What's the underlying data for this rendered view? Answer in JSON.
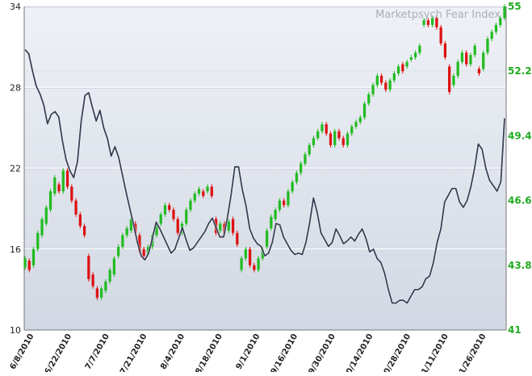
{
  "chart_data": {
    "type": "line",
    "title": "Marketpsych Fear Index",
    "xlabel": "",
    "ylabel": "",
    "x_ticks": [
      "6/8/2010",
      "6/22/2010",
      "7/7/2010",
      "7/21/2010",
      "8/4/2010",
      "8/18/2010",
      "9/1/2010",
      "9/16/2010",
      "9/30/2010",
      "10/14/2010",
      "10/28/2010",
      "11/11/2010",
      "11/26/2010"
    ],
    "y_left": {
      "range": [
        10,
        34
      ],
      "ticks": [
        "10",
        "16",
        "22",
        "28",
        "34"
      ]
    },
    "y_right": {
      "range": [
        41,
        55
      ],
      "ticks": [
        "41",
        "43.8",
        "46.6",
        "49.4",
        "52.2",
        "55"
      ]
    },
    "grid": true,
    "colors": {
      "background_top": "#eef1f6",
      "background_bottom": "#d2d8e3",
      "line": "#3a3f55",
      "up": "#22bb22",
      "down": "#dd1111",
      "right_axis_text": "#22aa22",
      "title_text": "#aab0b8"
    },
    "series": [
      {
        "axis": "left",
        "style": "line",
        "values": [
          30.8,
          30.5,
          29.2,
          28.1,
          27.5,
          26.7,
          25.3,
          26.0,
          26.2,
          25.8,
          24.0,
          22.6,
          21.8,
          21.3,
          22.5,
          25.5,
          27.4,
          27.6,
          26.5,
          25.5,
          26.3,
          25.0,
          24.2,
          22.9,
          23.6,
          22.8,
          21.5,
          20.2,
          19.0,
          17.8,
          16.5,
          15.5,
          15.2,
          15.7,
          16.8,
          18.0,
          17.5,
          16.9,
          16.3,
          15.7,
          16.0,
          16.8,
          17.6,
          16.7,
          15.9,
          16.1,
          16.5,
          16.9,
          17.3,
          17.9,
          18.3,
          17.6,
          16.9,
          16.9,
          18.3,
          20.0,
          22.1,
          22.1,
          20.4,
          19.2,
          17.5,
          16.8,
          16.4,
          16.2,
          15.5,
          15.7,
          16.5,
          17.9,
          17.8,
          16.9,
          16.4,
          15.9,
          15.6,
          15.7,
          15.6,
          16.5,
          18.0,
          19.8,
          18.7,
          17.2,
          16.7,
          16.2,
          16.5,
          17.5,
          17.0,
          16.4,
          16.6,
          16.9,
          16.6,
          17.1,
          17.5,
          16.8,
          15.8,
          16.0,
          15.3,
          15.0,
          14.2,
          13.0,
          12.0,
          12.0,
          12.2,
          12.2,
          12.0,
          12.5,
          13.0,
          13.0,
          13.2,
          13.8,
          14.0,
          15.0,
          16.5,
          17.5,
          19.5,
          20.0,
          20.5,
          20.5,
          19.5,
          19.1,
          19.6,
          20.6,
          22.0,
          23.8,
          23.4,
          22.0,
          21.1,
          20.7,
          20.3,
          21.0,
          25.7
        ]
      },
      {
        "axis": "right",
        "style": "candlestick",
        "note": "daily open/close pairs; up = close above open",
        "values": [
          [
            43.7,
            44.1
          ],
          [
            44.0,
            43.6
          ],
          [
            43.8,
            44.5
          ],
          [
            44.5,
            45.2
          ],
          [
            45.1,
            45.8
          ],
          [
            45.6,
            46.3
          ],
          [
            46.2,
            47.0
          ],
          [
            46.9,
            47.6
          ],
          [
            47.3,
            47.0
          ],
          [
            47.0,
            47.9
          ],
          [
            47.9,
            47.2
          ],
          [
            47.2,
            46.6
          ],
          [
            46.6,
            46.0
          ],
          [
            46.0,
            45.5
          ],
          [
            45.5,
            45.1
          ],
          [
            44.2,
            43.2
          ],
          [
            43.4,
            42.9
          ],
          [
            42.8,
            42.4
          ],
          [
            42.4,
            42.8
          ],
          [
            42.7,
            43.1
          ],
          [
            43.1,
            43.6
          ],
          [
            43.4,
            44.1
          ],
          [
            44.2,
            44.6
          ],
          [
            44.6,
            45.1
          ],
          [
            45.1,
            45.4
          ],
          [
            45.3,
            45.8
          ],
          [
            45.6,
            45.2
          ],
          [
            45.1,
            44.4
          ],
          [
            44.5,
            44.2
          ],
          [
            44.3,
            44.6
          ],
          [
            44.6,
            45.1
          ],
          [
            45.1,
            45.6
          ],
          [
            45.6,
            46.0
          ],
          [
            46.0,
            46.4
          ],
          [
            46.4,
            46.2
          ],
          [
            46.2,
            45.8
          ],
          [
            45.8,
            45.2
          ],
          [
            45.2,
            45.6
          ],
          [
            45.6,
            46.2
          ],
          [
            46.2,
            46.6
          ],
          [
            46.6,
            46.9
          ],
          [
            46.9,
            47.1
          ],
          [
            47.0,
            46.8
          ],
          [
            47.0,
            47.2
          ],
          [
            47.2,
            46.8
          ],
          [
            45.8,
            45.2
          ],
          [
            45.3,
            45.6
          ],
          [
            45.6,
            45.2
          ],
          [
            45.3,
            45.7
          ],
          [
            45.8,
            45.2
          ],
          [
            45.2,
            44.7
          ],
          [
            43.6,
            44.1
          ],
          [
            44.1,
            44.5
          ],
          [
            44.5,
            43.8
          ],
          [
            43.8,
            43.6
          ],
          [
            43.6,
            44.1
          ],
          [
            44.1,
            44.5
          ],
          [
            44.6,
            45.3
          ],
          [
            45.4,
            45.9
          ],
          [
            45.8,
            46.2
          ],
          [
            46.2,
            46.6
          ],
          [
            46.6,
            46.4
          ],
          [
            46.4,
            47.0
          ],
          [
            47.0,
            47.4
          ],
          [
            47.4,
            47.8
          ],
          [
            47.8,
            48.2
          ],
          [
            48.2,
            48.6
          ],
          [
            48.6,
            49.0
          ],
          [
            49.0,
            49.3
          ],
          [
            49.3,
            49.6
          ],
          [
            49.6,
            49.9
          ],
          [
            49.9,
            49.5
          ],
          [
            49.5,
            49.0
          ],
          [
            49.0,
            49.6
          ],
          [
            49.6,
            49.3
          ],
          [
            49.3,
            49.0
          ],
          [
            49.0,
            49.5
          ],
          [
            49.5,
            49.8
          ],
          [
            49.8,
            50.0
          ],
          [
            50.0,
            50.2
          ],
          [
            50.2,
            50.8
          ],
          [
            50.8,
            51.2
          ],
          [
            51.2,
            51.6
          ],
          [
            51.6,
            52.0
          ],
          [
            52.0,
            51.7
          ],
          [
            51.7,
            51.4
          ],
          [
            51.4,
            51.8
          ],
          [
            51.8,
            52.1
          ],
          [
            52.1,
            52.4
          ],
          [
            52.5,
            52.2
          ],
          [
            52.4,
            52.6
          ],
          [
            52.7,
            52.8
          ],
          [
            52.8,
            53.0
          ],
          [
            53.0,
            53.3
          ],
          [
            54.2,
            54.4
          ],
          [
            54.4,
            54.2
          ],
          [
            54.2,
            54.5
          ],
          [
            54.5,
            54.1
          ],
          [
            54.1,
            53.4
          ],
          [
            53.4,
            52.8
          ],
          [
            52.4,
            51.3
          ],
          [
            51.6,
            52.0
          ],
          [
            52.0,
            52.6
          ],
          [
            52.6,
            53.0
          ],
          [
            53.0,
            52.5
          ],
          [
            52.5,
            52.9
          ],
          [
            52.9,
            53.3
          ],
          [
            52.3,
            52.1
          ],
          [
            52.3,
            53.0
          ],
          [
            53.0,
            53.6
          ],
          [
            53.6,
            53.9
          ],
          [
            53.9,
            54.2
          ],
          [
            54.2,
            54.5
          ],
          [
            54.5,
            55.0
          ]
        ]
      }
    ]
  }
}
